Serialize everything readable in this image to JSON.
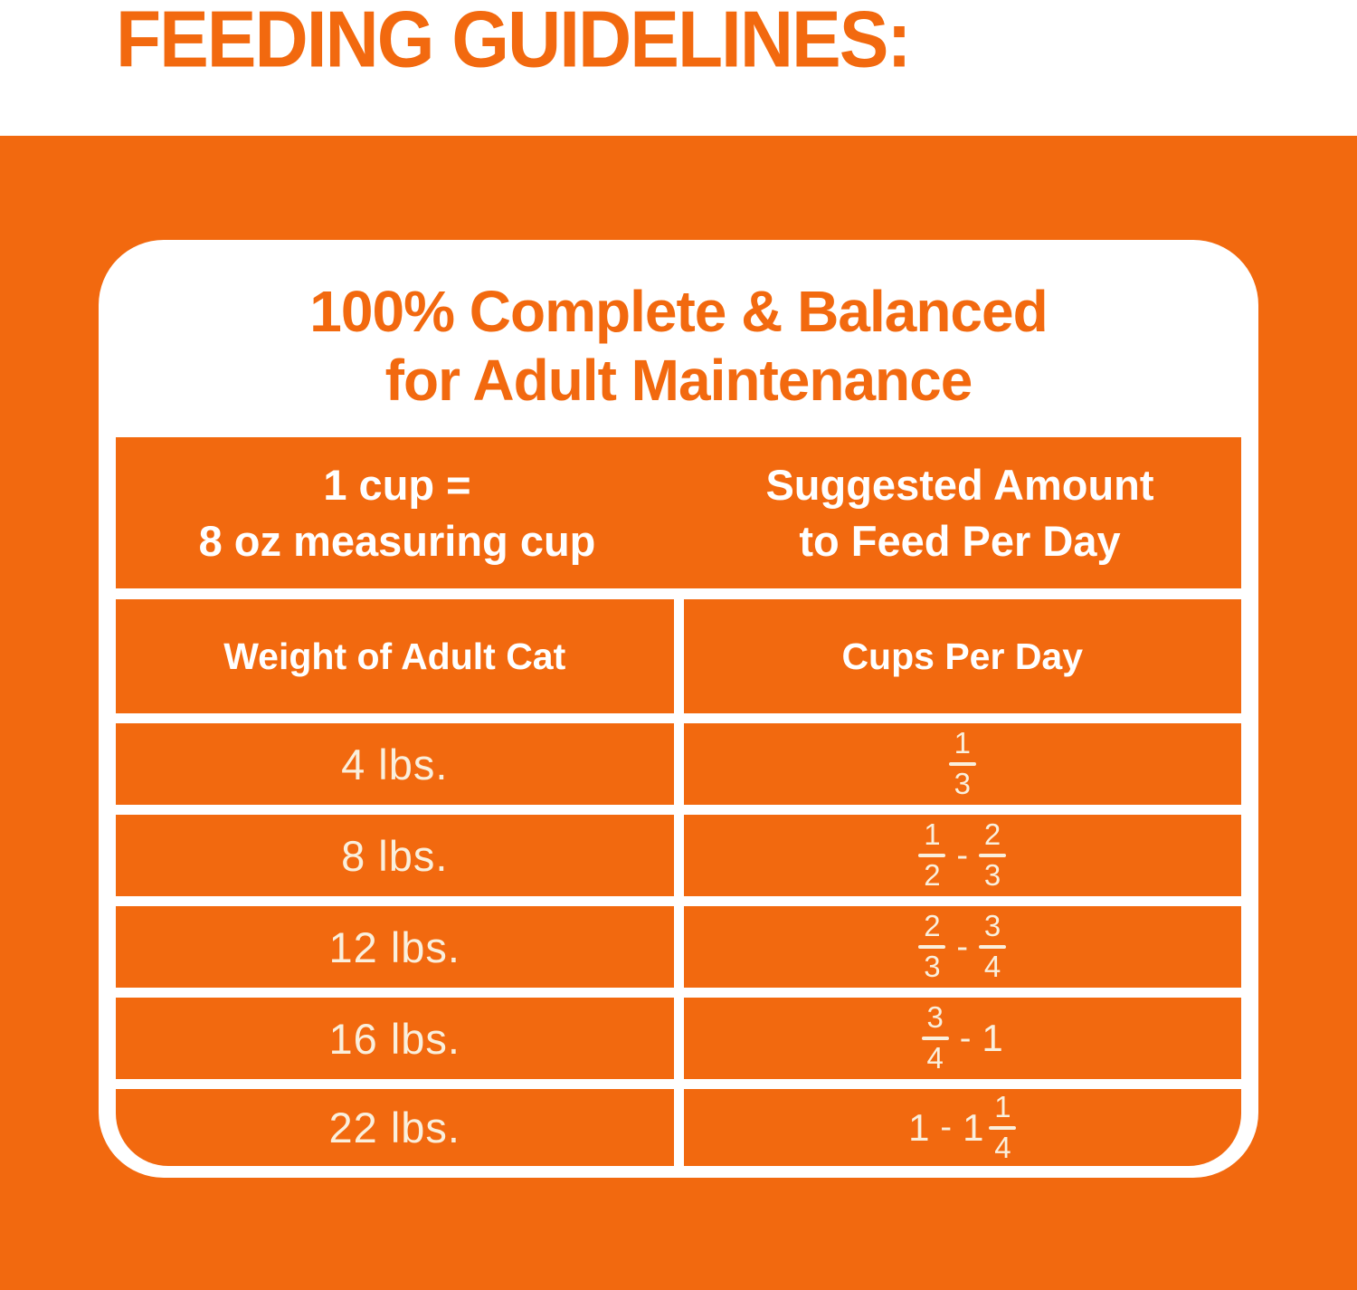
{
  "title": "FEEDING GUIDELINES:",
  "colors": {
    "orange": "#F2690F",
    "cream": "#FAEFDC",
    "white": "#FFFFFF"
  },
  "card": {
    "heading_line1": "100% Complete & Balanced",
    "heading_line2": "for Adult Maintenance",
    "band": {
      "left_line1": "1 cup =",
      "left_line2": "8 oz measuring cup",
      "right_line1": "Suggested Amount",
      "right_line2": "to Feed Per Day"
    },
    "columns": [
      "Weight of Adult Cat",
      "Cups Per Day"
    ],
    "rows": [
      {
        "weight": "4 lbs.",
        "tokens": [
          {
            "frac": [
              "1",
              "3"
            ]
          }
        ]
      },
      {
        "weight": "8 lbs.",
        "tokens": [
          {
            "frac": [
              "1",
              "2"
            ]
          },
          {
            "dash": "-"
          },
          {
            "frac": [
              "2",
              "3"
            ]
          }
        ]
      },
      {
        "weight": "12 lbs.",
        "tokens": [
          {
            "frac": [
              "2",
              "3"
            ]
          },
          {
            "dash": "-"
          },
          {
            "frac": [
              "3",
              "4"
            ]
          }
        ]
      },
      {
        "weight": "16 lbs.",
        "tokens": [
          {
            "frac": [
              "3",
              "4"
            ]
          },
          {
            "dash": "-"
          },
          {
            "whole": "1"
          }
        ]
      },
      {
        "weight": "22 lbs.",
        "tokens": [
          {
            "whole": "1"
          },
          {
            "dash": "-"
          },
          {
            "whole": "1"
          },
          {
            "frac": [
              "1",
              "4"
            ]
          }
        ]
      }
    ]
  }
}
